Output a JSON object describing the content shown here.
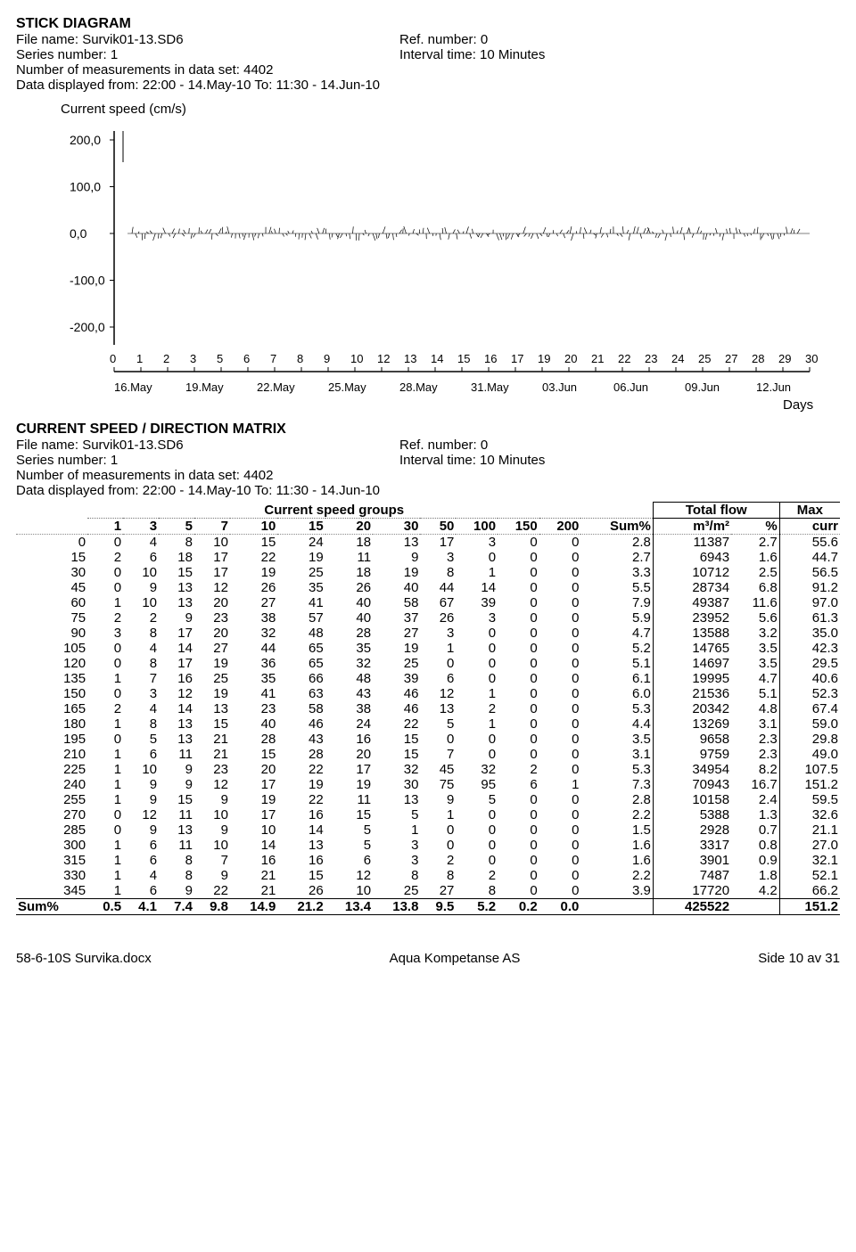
{
  "stick": {
    "title": "STICK DIAGRAM",
    "file_label": "File name: Survik01-13.SD6",
    "ref_label": "Ref. number: 0",
    "series_label": "Series number: 1",
    "interval_label": "Interval time: 10 Minutes",
    "nmeas_label": "Number of measurements in data set: 4402",
    "range_label": "Data displayed from: 22:00 - 14.May-10   To: 11:30 - 14.Jun-10",
    "yaxis_label": "Current speed (cm/s)",
    "yticks": [
      "200,0",
      "100,0",
      "0,0",
      "-100,0",
      "-200,0"
    ],
    "xticks_top": [
      "0",
      "1",
      "2",
      "3",
      "5",
      "6",
      "7",
      "8",
      "9",
      "10",
      "12",
      "13",
      "14",
      "15",
      "16",
      "17",
      "19",
      "20",
      "21",
      "22",
      "23",
      "24",
      "25",
      "27",
      "28",
      "29",
      "30"
    ],
    "xticks_bot": [
      "16.May",
      "19.May",
      "22.May",
      "25.May",
      "28.May",
      "31.May",
      "03.Jun",
      "06.Jun",
      "09.Jun",
      "12.Jun"
    ],
    "days_label": "Days",
    "axis_color": "#000000",
    "tick_color": "#000000",
    "bg": "#ffffff"
  },
  "matrix": {
    "title": "CURRENT SPEED / DIRECTION MATRIX",
    "file_label": "File name: Survik01-13.SD6",
    "ref_label": "Ref. number: 0",
    "series_label": "Series number: 1",
    "interval_label": "Interval time: 10 Minutes",
    "nmeas_label": "Number of measurements in data set: 4402",
    "range_label": "Data displayed from: 22:00 - 14.May-10   To: 11:30 - 14.Jun-10",
    "group_head": "Current speed groups",
    "totalflow_head": "Total flow",
    "max_head": "Max",
    "speed_cols": [
      "1",
      "3",
      "5",
      "7",
      "10",
      "15",
      "20",
      "30",
      "50",
      "100",
      "150",
      "200"
    ],
    "sumpct_head": "Sum%",
    "m3_head": "m³/m²",
    "pct_head": "%",
    "curr_head": "curr",
    "rows": [
      {
        "dir": "0",
        "v": [
          "0",
          "4",
          "8",
          "10",
          "15",
          "24",
          "18",
          "13",
          "17",
          "3",
          "0",
          "0"
        ],
        "sum": "2.8",
        "m3": "11387",
        "pct": "2.7",
        "max": "55.6"
      },
      {
        "dir": "15",
        "v": [
          "2",
          "6",
          "18",
          "17",
          "22",
          "19",
          "11",
          "9",
          "3",
          "0",
          "0",
          "0"
        ],
        "sum": "2.7",
        "m3": "6943",
        "pct": "1.6",
        "max": "44.7"
      },
      {
        "dir": "30",
        "v": [
          "0",
          "10",
          "15",
          "17",
          "19",
          "25",
          "18",
          "19",
          "8",
          "1",
          "0",
          "0"
        ],
        "sum": "3.3",
        "m3": "10712",
        "pct": "2.5",
        "max": "56.5"
      },
      {
        "dir": "45",
        "v": [
          "0",
          "9",
          "13",
          "12",
          "26",
          "35",
          "26",
          "40",
          "44",
          "14",
          "0",
          "0"
        ],
        "sum": "5.5",
        "m3": "28734",
        "pct": "6.8",
        "max": "91.2"
      },
      {
        "dir": "60",
        "v": [
          "1",
          "10",
          "13",
          "20",
          "27",
          "41",
          "40",
          "58",
          "67",
          "39",
          "0",
          "0"
        ],
        "sum": "7.9",
        "m3": "49387",
        "pct": "11.6",
        "max": "97.0"
      },
      {
        "dir": "75",
        "v": [
          "2",
          "2",
          "9",
          "23",
          "38",
          "57",
          "40",
          "37",
          "26",
          "3",
          "0",
          "0"
        ],
        "sum": "5.9",
        "m3": "23952",
        "pct": "5.6",
        "max": "61.3"
      },
      {
        "dir": "90",
        "v": [
          "3",
          "8",
          "17",
          "20",
          "32",
          "48",
          "28",
          "27",
          "3",
          "0",
          "0",
          "0"
        ],
        "sum": "4.7",
        "m3": "13588",
        "pct": "3.2",
        "max": "35.0"
      },
      {
        "dir": "105",
        "v": [
          "0",
          "4",
          "14",
          "27",
          "44",
          "65",
          "35",
          "19",
          "1",
          "0",
          "0",
          "0"
        ],
        "sum": "5.2",
        "m3": "14765",
        "pct": "3.5",
        "max": "42.3"
      },
      {
        "dir": "120",
        "v": [
          "0",
          "8",
          "17",
          "19",
          "36",
          "65",
          "32",
          "25",
          "0",
          "0",
          "0",
          "0"
        ],
        "sum": "5.1",
        "m3": "14697",
        "pct": "3.5",
        "max": "29.5"
      },
      {
        "dir": "135",
        "v": [
          "1",
          "7",
          "16",
          "25",
          "35",
          "66",
          "48",
          "39",
          "6",
          "0",
          "0",
          "0"
        ],
        "sum": "6.1",
        "m3": "19995",
        "pct": "4.7",
        "max": "40.6"
      },
      {
        "dir": "150",
        "v": [
          "0",
          "3",
          "12",
          "19",
          "41",
          "63",
          "43",
          "46",
          "12",
          "1",
          "0",
          "0"
        ],
        "sum": "6.0",
        "m3": "21536",
        "pct": "5.1",
        "max": "52.3"
      },
      {
        "dir": "165",
        "v": [
          "2",
          "4",
          "14",
          "13",
          "23",
          "58",
          "38",
          "46",
          "13",
          "2",
          "0",
          "0"
        ],
        "sum": "5.3",
        "m3": "20342",
        "pct": "4.8",
        "max": "67.4"
      },
      {
        "dir": "180",
        "v": [
          "1",
          "8",
          "13",
          "15",
          "40",
          "46",
          "24",
          "22",
          "5",
          "1",
          "0",
          "0"
        ],
        "sum": "4.4",
        "m3": "13269",
        "pct": "3.1",
        "max": "59.0"
      },
      {
        "dir": "195",
        "v": [
          "0",
          "5",
          "13",
          "21",
          "28",
          "43",
          "16",
          "15",
          "0",
          "0",
          "0",
          "0"
        ],
        "sum": "3.5",
        "m3": "9658",
        "pct": "2.3",
        "max": "29.8"
      },
      {
        "dir": "210",
        "v": [
          "1",
          "6",
          "11",
          "21",
          "15",
          "28",
          "20",
          "15",
          "7",
          "0",
          "0",
          "0"
        ],
        "sum": "3.1",
        "m3": "9759",
        "pct": "2.3",
        "max": "49.0"
      },
      {
        "dir": "225",
        "v": [
          "1",
          "10",
          "9",
          "23",
          "20",
          "22",
          "17",
          "32",
          "45",
          "32",
          "2",
          "0"
        ],
        "sum": "5.3",
        "m3": "34954",
        "pct": "8.2",
        "max": "107.5"
      },
      {
        "dir": "240",
        "v": [
          "1",
          "9",
          "9",
          "12",
          "17",
          "19",
          "19",
          "30",
          "75",
          "95",
          "6",
          "1"
        ],
        "sum": "7.3",
        "m3": "70943",
        "pct": "16.7",
        "max": "151.2"
      },
      {
        "dir": "255",
        "v": [
          "1",
          "9",
          "15",
          "9",
          "19",
          "22",
          "11",
          "13",
          "9",
          "5",
          "0",
          "0"
        ],
        "sum": "2.8",
        "m3": "10158",
        "pct": "2.4",
        "max": "59.5"
      },
      {
        "dir": "270",
        "v": [
          "0",
          "12",
          "11",
          "10",
          "17",
          "16",
          "15",
          "5",
          "1",
          "0",
          "0",
          "0"
        ],
        "sum": "2.2",
        "m3": "5388",
        "pct": "1.3",
        "max": "32.6"
      },
      {
        "dir": "285",
        "v": [
          "0",
          "9",
          "13",
          "9",
          "10",
          "14",
          "5",
          "1",
          "0",
          "0",
          "0",
          "0"
        ],
        "sum": "1.5",
        "m3": "2928",
        "pct": "0.7",
        "max": "21.1"
      },
      {
        "dir": "300",
        "v": [
          "1",
          "6",
          "11",
          "10",
          "14",
          "13",
          "5",
          "3",
          "0",
          "0",
          "0",
          "0"
        ],
        "sum": "1.6",
        "m3": "3317",
        "pct": "0.8",
        "max": "27.0"
      },
      {
        "dir": "315",
        "v": [
          "1",
          "6",
          "8",
          "7",
          "16",
          "16",
          "6",
          "3",
          "2",
          "0",
          "0",
          "0"
        ],
        "sum": "1.6",
        "m3": "3901",
        "pct": "0.9",
        "max": "32.1"
      },
      {
        "dir": "330",
        "v": [
          "1",
          "4",
          "8",
          "9",
          "21",
          "15",
          "12",
          "8",
          "8",
          "2",
          "0",
          "0"
        ],
        "sum": "2.2",
        "m3": "7487",
        "pct": "1.8",
        "max": "52.1"
      },
      {
        "dir": "345",
        "v": [
          "1",
          "6",
          "9",
          "22",
          "21",
          "26",
          "10",
          "25",
          "27",
          "8",
          "0",
          "0"
        ],
        "sum": "3.9",
        "m3": "17720",
        "pct": "4.2",
        "max": "66.2"
      }
    ],
    "sumrow": {
      "label": "Sum%",
      "v": [
        "0.5",
        "4.1",
        "7.4",
        "9.8",
        "14.9",
        "21.2",
        "13.4",
        "13.8",
        "9.5",
        "5.2",
        "0.2",
        "0.0"
      ],
      "sum": "",
      "m3": "425522",
      "pct": "",
      "max": "151.2"
    }
  },
  "footer": {
    "left": "58-6-10S Survika.docx",
    "center": "Aqua Kompetanse AS",
    "right": "Side 10 av 31"
  }
}
